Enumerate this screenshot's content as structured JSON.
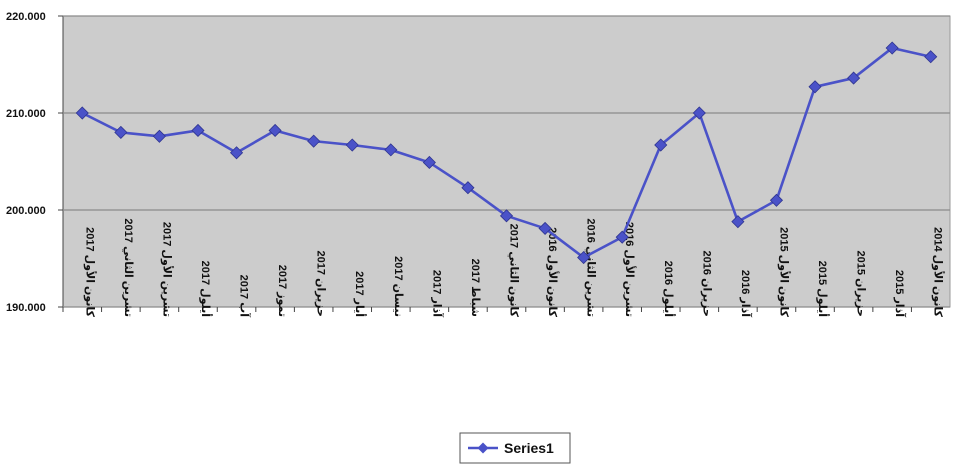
{
  "chart_data": {
    "type": "line",
    "title": "",
    "xlabel": "",
    "ylabel": "",
    "ylim": [
      190,
      220
    ],
    "yticks": [
      "190.000",
      "200.000",
      "210.000",
      "220.000"
    ],
    "ytick_values": [
      190,
      200,
      210,
      220
    ],
    "grid": true,
    "legend_position": "bottom",
    "plot_background": "#cccccc",
    "series_color": "#4a52c8",
    "categories": [
      "كانون الأول 2017",
      "تشرين الثاني 2017",
      "تشرين الأول 2017",
      "أيلول 2017",
      "آب 2017",
      "تموز 2017",
      "حزيران 2017",
      "أيار 2017",
      "نيسان 2017",
      "آذار 2017",
      "شباط 2017",
      "كانون الثاني 2017",
      "كانون الأول 2016",
      "تشرين الثاني 2016",
      "تشرين الأول 2016",
      "أيلول 2016",
      "حزيران 2016",
      "آذار 2016",
      "كانون الأول 2015",
      "أيلول 2015",
      "حزيران 2015",
      "آذار 2015",
      "كانون الأول 2014"
    ],
    "series": [
      {
        "name": "Series1",
        "values": [
          210.0,
          208.0,
          207.6,
          208.2,
          205.9,
          208.2,
          207.1,
          206.7,
          206.2,
          204.9,
          202.3,
          199.4,
          198.1,
          195.1,
          197.2,
          206.7,
          210.0,
          198.8,
          201.0,
          212.7,
          213.6,
          216.7,
          215.8
        ]
      }
    ]
  }
}
